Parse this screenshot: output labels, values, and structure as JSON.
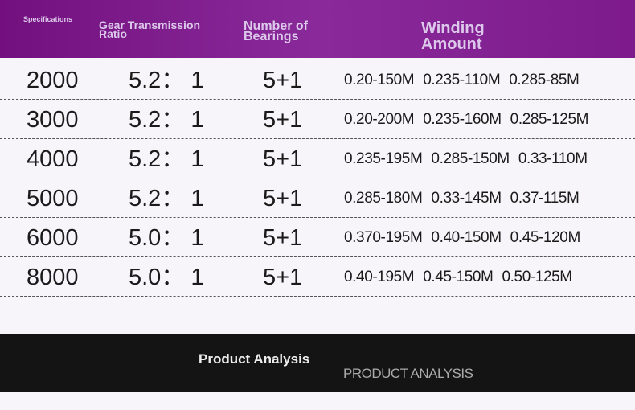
{
  "header": {
    "columns": [
      "Specifications",
      "Gear Transmission Ratio",
      "Number of Bearings",
      "Winding Amount"
    ]
  },
  "table": {
    "rows": [
      [
        "2000",
        "5.2： 1",
        "5+1",
        [
          "0.20-150M",
          "0.235-110M",
          "0.285-85M"
        ]
      ],
      [
        "3000",
        "5.2： 1",
        "5+1",
        [
          "0.20-200M",
          "0.235-160M",
          "0.285-125M"
        ]
      ],
      [
        "4000",
        "5.2： 1",
        "5+1",
        [
          "0.235-195M",
          "0.285-150M",
          "0.33-110M"
        ]
      ],
      [
        "5000",
        "5.2： 1",
        "5+1",
        [
          "0.285-180M",
          "0.33-145M",
          "0.37-115M"
        ]
      ],
      [
        "6000",
        "5.0： 1",
        "5+1",
        [
          "0.370-195M",
          "0.40-150M",
          "0.45-120M"
        ]
      ],
      [
        "8000",
        "5.0： 1",
        "5+1",
        [
          "0.40-195M",
          "0.45-150M",
          "0.50-125M"
        ]
      ]
    ]
  },
  "footer": {
    "title": "Product Analysis",
    "subtitle": "PRODUCT ANALYSIS"
  }
}
